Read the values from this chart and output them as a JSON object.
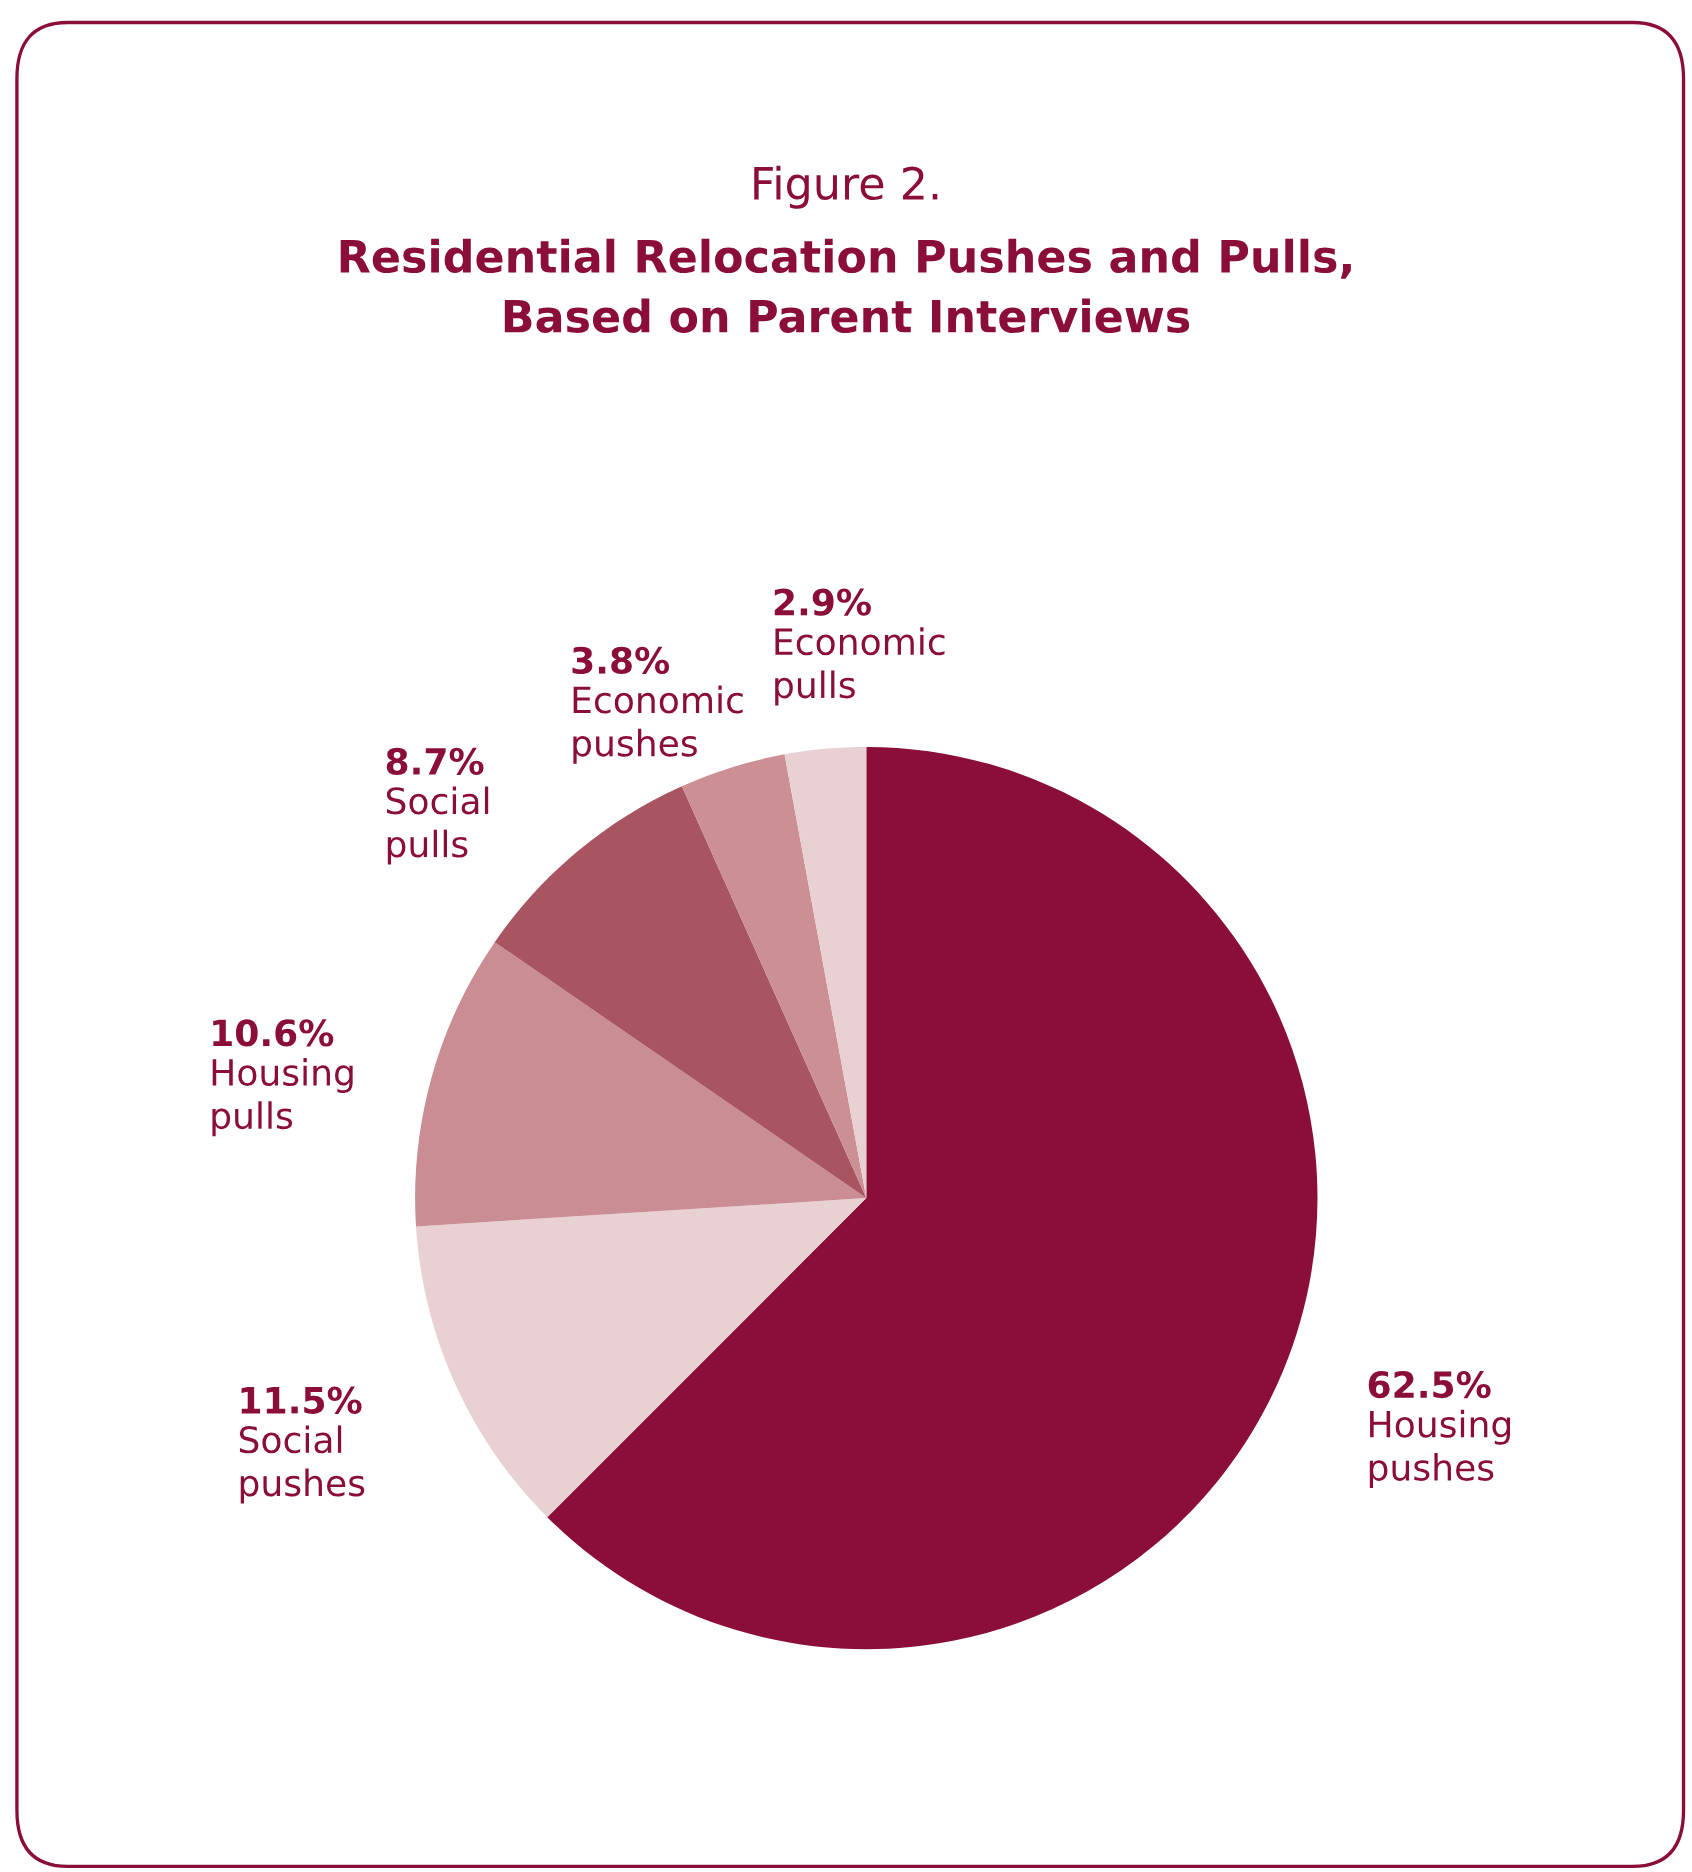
{
  "chart_data": {
    "type": "pie",
    "title": "Figure 2.",
    "subtitle": "Residential Relocation Pushes and Pulls,\nBased on Parent Interviews",
    "categories": [
      "Housing pushes",
      "Social pushes",
      "Housing pulls",
      "Social pulls",
      "Economic pushes",
      "Economic pulls"
    ],
    "values": [
      62.5,
      11.5,
      10.6,
      8.7,
      3.8,
      2.9
    ],
    "value_labels": [
      "62.5%",
      "11.5%",
      "10.6%",
      "8.7%",
      "3.8%",
      "2.9%"
    ],
    "colors": [
      "#8b0e3a",
      "#e8d0d3",
      "#c98d93",
      "#a85461",
      "#cc8f94",
      "#e8d0d3"
    ],
    "legend": false
  }
}
